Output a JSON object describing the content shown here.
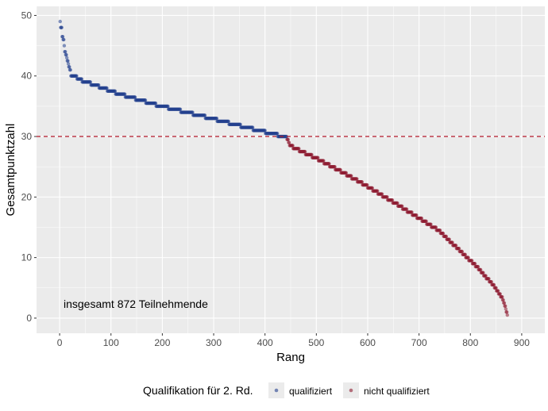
{
  "chart_data": {
    "type": "scatter",
    "title": "",
    "xlabel": "Rang",
    "ylabel": "Gesamtpunktzahl",
    "xlim": [
      -45,
      945
    ],
    "ylim": [
      -2.5,
      51.5
    ],
    "xticks": [
      0,
      100,
      200,
      300,
      400,
      500,
      600,
      700,
      800,
      900
    ],
    "yticks": [
      0,
      10,
      20,
      30,
      40,
      50
    ],
    "grid": true,
    "n_points": 872,
    "threshold": 30,
    "annotation": "insgesamt 872 Teilnehmende",
    "curve_anchors_rank_score": [
      [
        1,
        49
      ],
      [
        2,
        48
      ],
      [
        4,
        48
      ],
      [
        5,
        46.5
      ],
      [
        8,
        46
      ],
      [
        10,
        44
      ],
      [
        14,
        43
      ],
      [
        18,
        41.5
      ],
      [
        21,
        41
      ],
      [
        22,
        40
      ],
      [
        30,
        40
      ],
      [
        39,
        39.4
      ],
      [
        117,
        37
      ],
      [
        194,
        35.1
      ],
      [
        272,
        33.5
      ],
      [
        350,
        31.8
      ],
      [
        427,
        30.2
      ],
      [
        442,
        30
      ],
      [
        448,
        28.5
      ],
      [
        505,
        26.2
      ],
      [
        583,
        22.6
      ],
      [
        661,
        18.6
      ],
      [
        738,
        14.5
      ],
      [
        816,
        8.2
      ],
      [
        847,
        5.2
      ],
      [
        863,
        3.2
      ],
      [
        868,
        1.9
      ],
      [
        872,
        0.5
      ]
    ],
    "legend": {
      "title": "Qualifikation für 2. Rd.",
      "position": "bottom",
      "entries": [
        {
          "label": "qualifiziert",
          "color": "#23408e"
        },
        {
          "label": "nicht qualifiziert",
          "color": "#8e1b31"
        }
      ]
    },
    "threshold_color": "#b2182b"
  }
}
